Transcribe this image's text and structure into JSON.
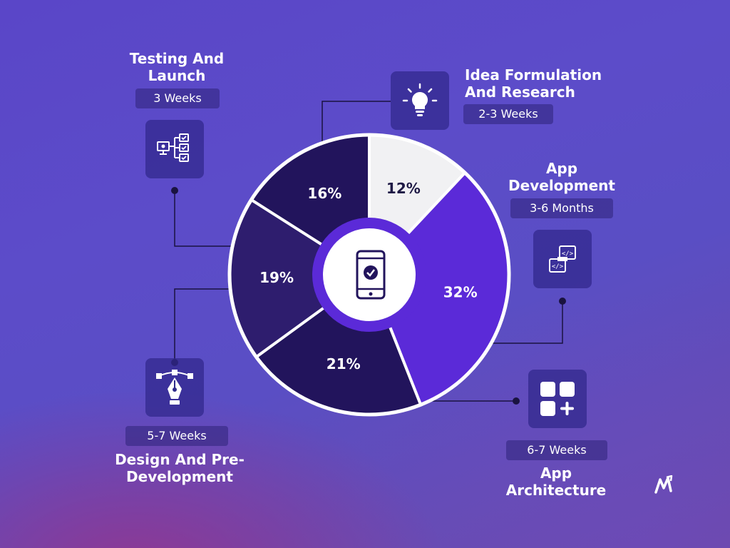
{
  "chart_data": {
    "type": "pie",
    "categories": [
      "Idea Formulation And Research",
      "App Development",
      "App Architecture",
      "Design And Pre-Development",
      "Testing And Launch"
    ],
    "values": [
      12,
      32,
      21,
      19,
      16
    ],
    "labels": [
      "12%",
      "32%",
      "21%",
      "19%",
      "16%"
    ],
    "durations": [
      "2-3 Weeks",
      "3-6 Months",
      "6-7 Weeks",
      "5-7 Weeks",
      "3 Weeks"
    ],
    "colors": [
      "#f1f1f3",
      "#5b2ad8",
      "#22145c",
      "#2e1d6e",
      "#22145c"
    ]
  },
  "steps": {
    "idea": {
      "title_line1": "Idea Formulation",
      "title_line2": "And Research",
      "duration": "2-3 Weeks",
      "icon": "lightbulb-icon"
    },
    "appdev": {
      "title_line1": "App",
      "title_line2": "Development",
      "duration": "3-6 Months",
      "icon": "code-windows-icon"
    },
    "arch": {
      "title_line1": "App",
      "title_line2": "Architecture",
      "duration": "6-7 Weeks",
      "icon": "grid-add-icon"
    },
    "design": {
      "title_line1": "Design And Pre-",
      "title_line2": "Development",
      "duration": "5-7 Weeks",
      "icon": "pen-tool-icon"
    },
    "testing": {
      "title_line1": "Testing And",
      "title_line2": "Launch",
      "duration": "3 Weeks",
      "icon": "checklist-icon"
    }
  },
  "center_icon": "smartphone-check-icon",
  "brand_icon": "brand-logo-icon",
  "colors": {
    "accent": "#5b2ad8",
    "dark_segment": "#22145c",
    "light_segment": "#f1f1f3",
    "pill_bg": "#2d2378"
  }
}
